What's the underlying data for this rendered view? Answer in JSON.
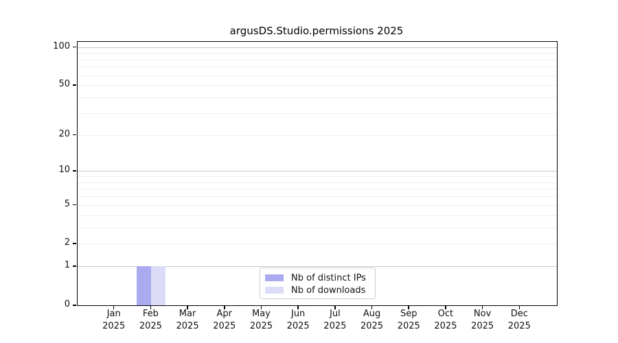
{
  "chart_data": {
    "type": "bar",
    "title": "argusDS.Studio.permissions 2025",
    "categories": [
      "Jan",
      "Feb",
      "Mar",
      "Apr",
      "May",
      "Jun",
      "Jul",
      "Aug",
      "Sep",
      "Oct",
      "Nov",
      "Dec"
    ],
    "year_label": "2025",
    "series": [
      {
        "name": "Nb of distinct IPs",
        "color": "#aaaaf0",
        "values": [
          0,
          1,
          0,
          0,
          0,
          0,
          0,
          0,
          0,
          0,
          0,
          0
        ]
      },
      {
        "name": "Nb of downloads",
        "color": "#dcdcf8",
        "values": [
          0,
          1,
          0,
          0,
          0,
          0,
          0,
          0,
          0,
          0,
          0,
          0
        ]
      }
    ],
    "y_axis": {
      "scale": "log1p",
      "tick_values": [
        0,
        1,
        2,
        5,
        10,
        20,
        50,
        100
      ],
      "tick_labels": [
        "0",
        "1",
        "2",
        "5",
        "10",
        "20",
        "50",
        "100"
      ],
      "ymax": 110,
      "decade_gridlines": [
        1,
        10,
        100
      ],
      "minor_gridlines": [
        2,
        3,
        4,
        5,
        6,
        7,
        8,
        9,
        20,
        30,
        40,
        50,
        60,
        70,
        80,
        90
      ]
    },
    "legend": {
      "position": "bottom-center"
    },
    "grid": true
  },
  "colors": {
    "bar_distinct_ips": "#aaaaf0",
    "bar_downloads": "#dcdcf8",
    "grid_major": "#c8c8c8",
    "grid_minor": "#efefef",
    "spine": "#000000",
    "legend_border": "#cccccc",
    "text": "#111111"
  }
}
